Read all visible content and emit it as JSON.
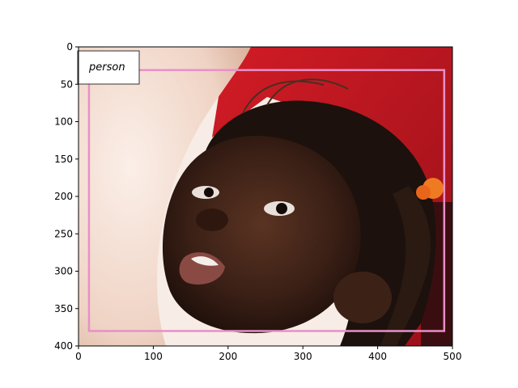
{
  "annotation": {
    "label": "person",
    "box_color": "#e98fc8",
    "box": {
      "x0": 14,
      "y0": 31,
      "x1": 489,
      "y1": 380
    }
  },
  "image": {
    "subject": "close-up photo of a young girl looking upward, held by an adult arm",
    "background_color": "#c41a24"
  },
  "axes": {
    "x_range": [
      0,
      500
    ],
    "y_range": [
      400,
      0
    ],
    "x_ticks": [
      0,
      100,
      200,
      300,
      400,
      500
    ],
    "y_ticks": [
      0,
      50,
      100,
      150,
      200,
      250,
      300,
      350,
      400
    ]
  }
}
